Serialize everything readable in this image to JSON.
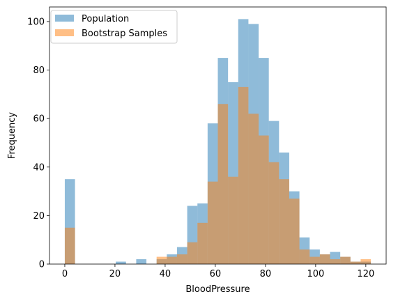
{
  "chart_data": {
    "type": "bar",
    "subtype": "overlapping-histogram",
    "title": "",
    "xlabel": "BloodPressure",
    "ylabel": "Frequency",
    "xlim": [
      -6.1,
      128.1
    ],
    "ylim": [
      0,
      106
    ],
    "xticks": [
      "0",
      "20",
      "40",
      "60",
      "80",
      "100",
      "120"
    ],
    "xtick_values": [
      0,
      20,
      40,
      60,
      80,
      100,
      120
    ],
    "yticks": [
      "0",
      "20",
      "40",
      "60",
      "80",
      "100"
    ],
    "ytick_values": [
      0,
      20,
      40,
      60,
      80,
      100
    ],
    "legend_position": "upper-left",
    "series": [
      {
        "name": "Population",
        "color": "#1f77b4",
        "opacity": 0.5,
        "bin_edges": [
          0,
          4.07,
          8.13,
          12.2,
          16.27,
          20.33,
          24.4,
          28.47,
          32.53,
          36.6,
          40.67,
          44.73,
          48.8,
          52.87,
          56.93,
          61,
          65.07,
          69.13,
          73.2,
          77.27,
          81.33,
          85.4,
          89.47,
          93.53,
          97.6,
          101.67,
          105.73,
          109.8,
          113.87,
          117.93,
          122
        ],
        "values": [
          35,
          0,
          0,
          0,
          0,
          1,
          0,
          2,
          0,
          2,
          4,
          7,
          24,
          25,
          58,
          85,
          75,
          101,
          99,
          85,
          59,
          46,
          30,
          11,
          6,
          4,
          5,
          3,
          1,
          1
        ]
      },
      {
        "name": "Bootstrap Samples",
        "color": "#ff7f0e",
        "opacity": 0.5,
        "bin_edges": [
          0,
          4.07,
          8.13,
          12.2,
          16.27,
          20.33,
          24.4,
          28.47,
          32.53,
          36.6,
          40.67,
          44.73,
          48.8,
          52.87,
          56.93,
          61,
          65.07,
          69.13,
          73.2,
          77.27,
          81.33,
          85.4,
          89.47,
          93.53,
          97.6,
          101.67,
          105.73,
          109.8,
          113.87,
          117.93,
          122
        ],
        "values": [
          15,
          0,
          0,
          0,
          0,
          0,
          0,
          0,
          0,
          3,
          3,
          4,
          9,
          17,
          34,
          66,
          36,
          73,
          62,
          53,
          42,
          35,
          27,
          6,
          3,
          4,
          2,
          3,
          1,
          2
        ]
      }
    ]
  }
}
